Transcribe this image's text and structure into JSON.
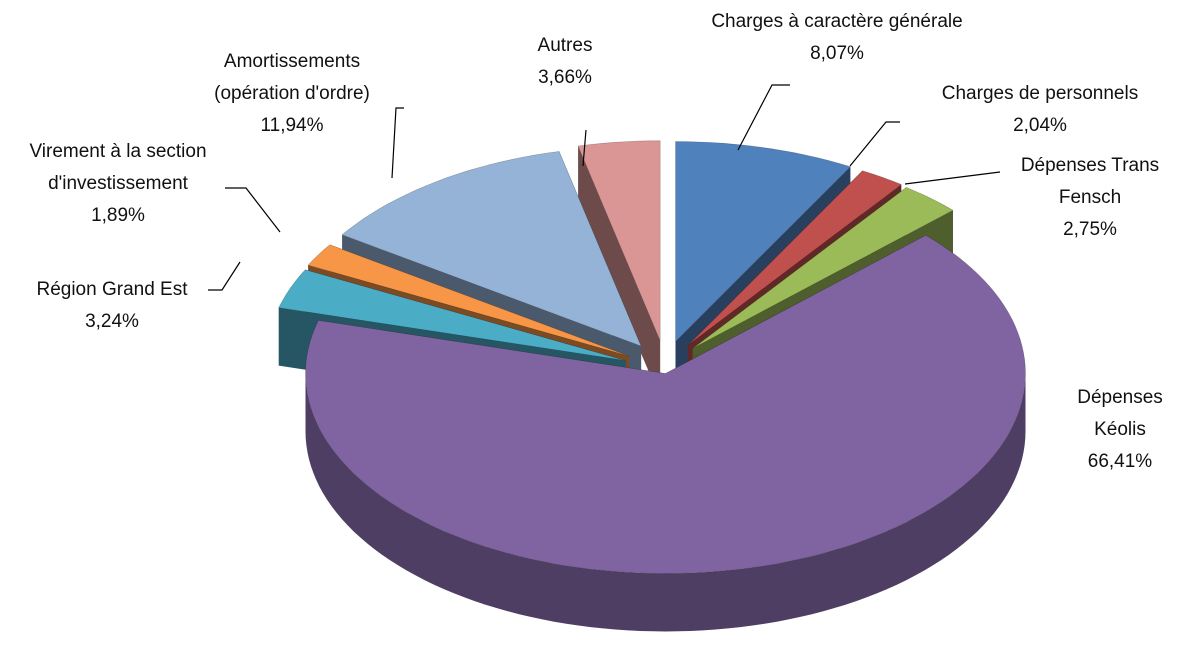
{
  "chart_data": {
    "type": "pie3d",
    "categories": [
      "Charges à caractère générale",
      "Charges de personnels",
      "Dépenses Trans Fensch",
      "Dépenses Kéolis",
      "Région Grand Est",
      "Virement à la section d'investissement",
      "Amortissements (opération d'ordre)",
      "Autres"
    ],
    "values": [
      8.07,
      2.04,
      2.75,
      66.41,
      3.24,
      1.89,
      11.94,
      3.66
    ],
    "value_labels": [
      "8,07%",
      "2,04%",
      "2,75%",
      "66,41%",
      "3,24%",
      "1,89%",
      "11,94%",
      "3,66%"
    ],
    "colors": [
      "#4f81bd",
      "#c0504d",
      "#9bbb59",
      "#8064a2",
      "#4bacc6",
      "#f79646",
      "#95b3d7",
      "#d99694"
    ]
  }
}
